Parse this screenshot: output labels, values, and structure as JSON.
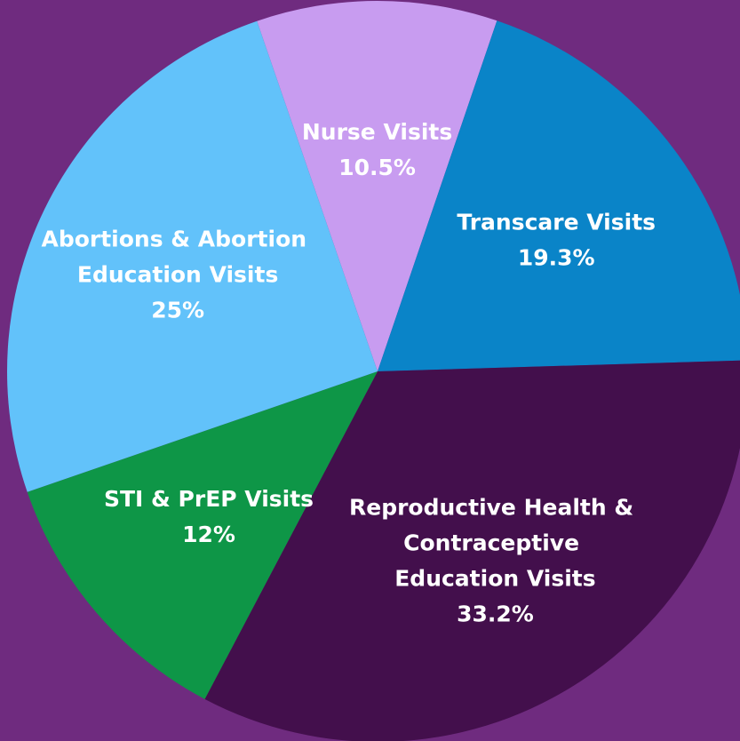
{
  "chart_data": {
    "type": "pie",
    "categories": [
      "Nurse Visits",
      "Transcare Visits",
      "Reproductive Health & Contraceptive Education Visits",
      "STI & PrEP Visits",
      "Abortions & Abortion Education Visits"
    ],
    "values": [
      10.5,
      19.3,
      33.2,
      12,
      25
    ],
    "value_labels": [
      "10.5%",
      "19.3%",
      "33.2%",
      "12%",
      "25%"
    ],
    "colors": [
      "#c89cf0",
      "#0a84c8",
      "#430f4c",
      "#0e9647",
      "#62c2fa"
    ]
  }
}
